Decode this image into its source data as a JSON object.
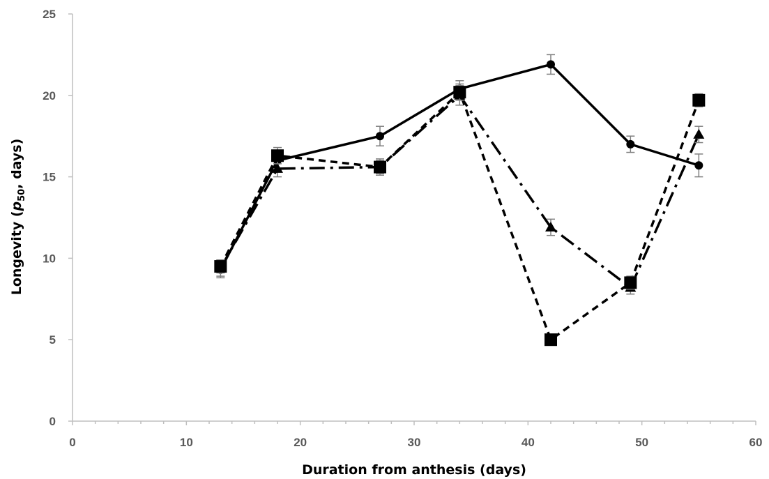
{
  "chart_data": {
    "type": "line",
    "title": "",
    "xlabel": "Duration from anthesis (days)",
    "ylabel": {
      "prefix": "Longevity (",
      "var": "p",
      "sub": "50",
      "suffix": ", days)"
    },
    "xlim": [
      0,
      60
    ],
    "ylim": [
      0,
      25
    ],
    "xticks": [
      0,
      10,
      20,
      30,
      40,
      50,
      60
    ],
    "yticks": [
      0,
      5,
      10,
      15,
      20,
      25
    ],
    "grid": false,
    "legend": "none",
    "colors": {
      "series": "#000000",
      "axis": "#bfbfbf",
      "tick_text": "#595959",
      "error_bar": "#7f7f7f"
    },
    "series": [
      {
        "marker": "circle",
        "line_style": "solid",
        "x": [
          13,
          18,
          27,
          34,
          42,
          49,
          55
        ],
        "y": [
          9.3,
          16.0,
          17.5,
          20.4,
          21.9,
          17.0,
          15.7
        ],
        "err": [
          0.5,
          0.5,
          0.6,
          0.5,
          0.6,
          0.5,
          0.7
        ]
      },
      {
        "marker": "triangle",
        "line_style": "dash-dot",
        "x": [
          13,
          18,
          27,
          34,
          42,
          49,
          55
        ],
        "y": [
          9.4,
          15.5,
          15.6,
          20.0,
          11.9,
          8.2,
          17.6
        ],
        "err": [
          0.5,
          0.5,
          0.5,
          0.6,
          0.5,
          0.4,
          0.5
        ]
      },
      {
        "marker": "square",
        "line_style": "dashed",
        "x": [
          13,
          18,
          27,
          34,
          42,
          49,
          55
        ],
        "y": [
          9.5,
          16.3,
          15.6,
          20.2,
          5.0,
          8.5,
          19.7
        ],
        "err": [
          0.4,
          0.5,
          0.4,
          0.5,
          0.3,
          0.4,
          0.4
        ]
      }
    ]
  }
}
